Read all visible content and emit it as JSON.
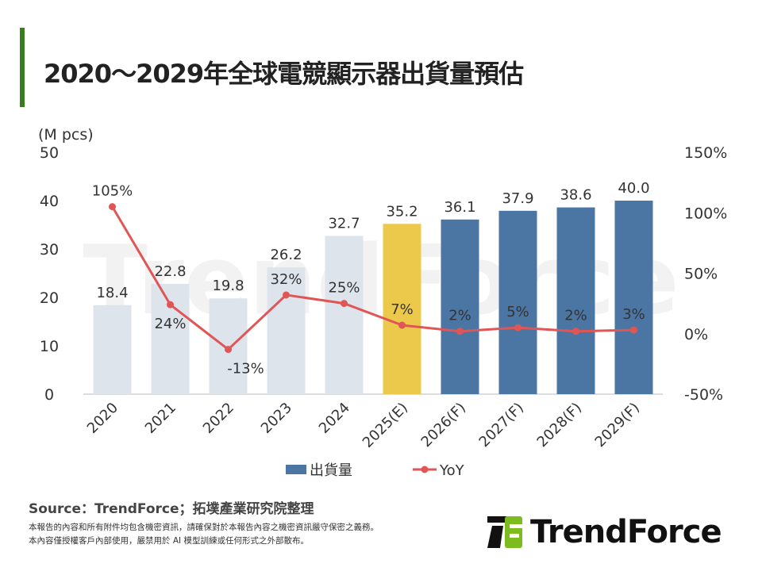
{
  "title": "2020～2029年全球電競顯示器出貨量預估",
  "source": "Source：TrendForce；拓墣產業研究院整理",
  "disclaimer": [
    "本報告的內容和所有附件均包含機密資訊，請確保對於本報告內容之機密資訊嚴守保密之義務。",
    "本內容僅授權客戶內部使用，嚴禁用於 AI 模型訓練或任何形式之外部散布。"
  ],
  "logo_text": "TrendForce",
  "watermark": "TrendForce",
  "chart_data": {
    "type": "bar+line",
    "categories": [
      "2020",
      "2021",
      "2022",
      "2023",
      "2024",
      "2025(E)",
      "2026(F)",
      "2027(F)",
      "2028(F)",
      "2029(F)"
    ],
    "left_axis": {
      "unit_label": "(M pcs)",
      "ylim": [
        0,
        50
      ],
      "ticks": [
        "0",
        "10",
        "20",
        "30",
        "40",
        "50"
      ]
    },
    "right_axis": {
      "ylim": [
        -50,
        150
      ],
      "ticks": [
        "-50%",
        "0%",
        "50%",
        "100%",
        "150%"
      ]
    },
    "grid": false,
    "legend_position": "bottom",
    "series": [
      {
        "name": "出貨量",
        "type": "bar",
        "values": [
          18.4,
          22.8,
          19.8,
          26.2,
          32.7,
          35.2,
          36.1,
          37.9,
          38.6,
          40.0
        ],
        "labels": [
          "18.4",
          "22.8",
          "19.8",
          "26.2",
          "32.7",
          "35.2",
          "36.1",
          "37.9",
          "38.6",
          "40.0"
        ],
        "colors": [
          "#dde4ec",
          "#dde4ec",
          "#dde4ec",
          "#dde4ec",
          "#dde4ec",
          "#ecc94b",
          "#4b76a3",
          "#4b76a3",
          "#4b76a3",
          "#4b76a3"
        ]
      },
      {
        "name": "YoY",
        "type": "line",
        "axis": "right",
        "values": [
          105,
          24,
          -13,
          32,
          25,
          7,
          2,
          5,
          2,
          3
        ],
        "labels": [
          "105%",
          "24%",
          "-13%",
          "32%",
          "25%",
          "7%",
          "2%",
          "5%",
          "2%",
          "3%"
        ],
        "color": "#e05656"
      }
    ]
  }
}
